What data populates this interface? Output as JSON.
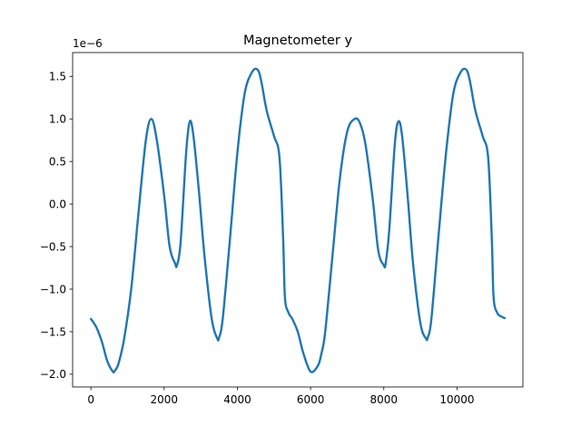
{
  "chart_data": {
    "type": "line",
    "title": "Magnetometer y",
    "xlabel": "",
    "ylabel": "",
    "y_offset_label": "1e−6",
    "xlim": [
      -500,
      11800
    ],
    "ylim": [
      -2.15,
      1.78
    ],
    "x_ticks": [
      0,
      2000,
      4000,
      6000,
      8000,
      10000
    ],
    "x_tick_labels": [
      "0",
      "2000",
      "4000",
      "6000",
      "8000",
      "10000"
    ],
    "y_ticks": [
      -2.0,
      -1.5,
      -1.0,
      -0.5,
      0.0,
      0.5,
      1.0,
      1.5
    ],
    "y_tick_labels": [
      "−2.0",
      "−1.5",
      "−1.0",
      "−0.5",
      "0.0",
      "0.5",
      "1.0",
      "1.5"
    ],
    "grid": false,
    "colors": {
      "series": "#1f77b4"
    },
    "series": [
      {
        "x": [
          0,
          150,
          300,
          450,
          600,
          650,
          750,
          900,
          1100,
          1300,
          1500,
          1650,
          1800,
          2000,
          2150,
          2300,
          2350,
          2450,
          2600,
          2700,
          2800,
          2950,
          3100,
          3300,
          3450,
          3500,
          3600,
          3800,
          4000,
          4200,
          4400,
          4550,
          4650,
          4800,
          5000,
          5150,
          5250,
          5300,
          5400,
          5500,
          5650,
          5800,
          6000,
          6200,
          6300,
          6400,
          6600,
          6800,
          7000,
          7200,
          7350,
          7500,
          7700,
          7850,
          8000,
          8050,
          8150,
          8300,
          8400,
          8500,
          8650,
          8800,
          9000,
          9150,
          9200,
          9300,
          9500,
          9700,
          9900,
          10100,
          10250,
          10350,
          10500,
          10700,
          10850,
          10950,
          11000,
          11100,
          11200,
          11300
        ],
        "y": [
          -1.35,
          -1.45,
          -1.62,
          -1.85,
          -1.97,
          -1.96,
          -1.88,
          -1.6,
          -1.0,
          -0.1,
          0.75,
          1.0,
          0.75,
          0.1,
          -0.5,
          -0.7,
          -0.72,
          -0.45,
          0.6,
          0.97,
          0.8,
          0.15,
          -0.6,
          -1.35,
          -1.58,
          -1.57,
          -1.35,
          -0.4,
          0.6,
          1.3,
          1.55,
          1.58,
          1.45,
          1.1,
          0.8,
          0.55,
          -0.4,
          -1.1,
          -1.28,
          -1.35,
          -1.5,
          -1.75,
          -1.97,
          -1.9,
          -1.75,
          -1.5,
          -0.6,
          0.3,
          0.85,
          1.0,
          0.95,
          0.7,
          0.05,
          -0.55,
          -0.72,
          -0.7,
          -0.3,
          0.7,
          0.97,
          0.8,
          0.1,
          -0.7,
          -1.4,
          -1.58,
          -1.57,
          -1.35,
          -0.35,
          0.6,
          1.3,
          1.55,
          1.58,
          1.45,
          1.1,
          0.8,
          0.55,
          -0.4,
          -1.1,
          -1.28,
          -1.32,
          -1.34
        ]
      }
    ]
  }
}
